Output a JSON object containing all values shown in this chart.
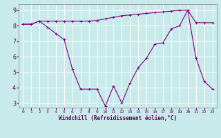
{
  "xlabel": "Windchill (Refroidissement éolien,°C)",
  "background_color": "#c8eaea",
  "grid_color": "#ffffff",
  "line_color": "#800080",
  "xlim": [
    -0.5,
    23.5
  ],
  "ylim": [
    2.7,
    9.4
  ],
  "xticks": [
    0,
    1,
    2,
    3,
    4,
    5,
    6,
    7,
    8,
    9,
    10,
    11,
    12,
    13,
    14,
    15,
    16,
    17,
    18,
    19,
    20,
    21,
    22,
    23
  ],
  "yticks": [
    3,
    4,
    5,
    6,
    7,
    8,
    9
  ],
  "line1_x": [
    0,
    1,
    2,
    3,
    4,
    5,
    6,
    7,
    8,
    9,
    10,
    11,
    12,
    13,
    14,
    15,
    16,
    17,
    18,
    19,
    20,
    21,
    22,
    23
  ],
  "line1_y": [
    8.1,
    8.1,
    8.3,
    8.3,
    8.3,
    8.3,
    8.3,
    8.3,
    8.3,
    8.35,
    8.45,
    8.55,
    8.65,
    8.7,
    8.75,
    8.8,
    8.85,
    8.9,
    8.95,
    9.0,
    9.0,
    8.2,
    8.2,
    8.2
  ],
  "line2_x": [
    0,
    1,
    2,
    3,
    4,
    5,
    6,
    7,
    8,
    9,
    10,
    11,
    12,
    13,
    14,
    15,
    16,
    17,
    18,
    19,
    20,
    21,
    22,
    23
  ],
  "line2_y": [
    8.1,
    8.1,
    8.3,
    7.9,
    7.5,
    7.1,
    5.2,
    3.9,
    3.9,
    3.9,
    2.8,
    4.1,
    3.0,
    4.3,
    5.3,
    5.9,
    6.8,
    6.9,
    7.8,
    8.0,
    9.0,
    5.9,
    4.4,
    3.9
  ]
}
